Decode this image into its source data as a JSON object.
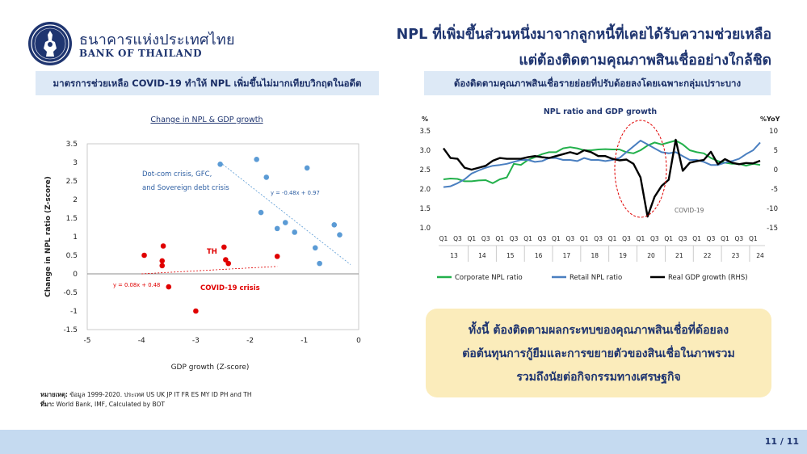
{
  "header": {
    "org_name_th": "ธนาคารแห่งประเทศไทย",
    "org_name_en": "BANK OF THAILAND",
    "headline_line1": "NPL ที่เพิ่มขึ้นส่วนหนึ่งมาจากลูกหนี้ที่เคยได้รับความช่วยเหลือ",
    "headline_line2": "แต่ต้องติดตามคุณภาพสินเชื่ออย่างใกล้ชิด"
  },
  "left_panel": {
    "subheading": "มาตรการช่วยเหลือ COVID-19 ทำให้ NPL เพิ่มขึ้นไม่มากเทียบวิกฤตในอดีต",
    "note_label": "หมายเหตุ:",
    "note_text": "ข้อมูล 1999-2020. ประเทศ US UK JP IT FR ES MY ID PH and TH",
    "source_label": "ที่มา:",
    "source_text": "World Bank, IMF, Calculated by BOT"
  },
  "right_panel": {
    "subheading": "ต้องติดตามคุณภาพสินเชื่อรายย่อยที่ปรับด้อยลงโดยเฉพาะกลุ่มเปราะบาง",
    "callout_line1": "ทั้งนี้ ต้องติดตามผลกระทบของคุณภาพสินเชื่อที่ด้อยลง",
    "callout_line2": "ต่อต้นทุนการกู้ยืมและการขยายตัวของสินเชื่อในภาพรวม",
    "callout_line3": "รวมถึงนัยต่อกิจกรรมทางเศรษฐกิจ"
  },
  "footer": {
    "page": "11 / 11"
  },
  "colors": {
    "navy": "#1f3570",
    "blue_points": "#5b9bd5",
    "red_points": "#e00000",
    "green": "#22b04b",
    "retail": "#4a7fc0",
    "black": "#000000"
  },
  "chart_data": [
    {
      "type": "scatter",
      "title": "Change in NPL & GDP growth",
      "xlabel": "GDP growth (Z-score)",
      "ylabel": "Change in NPL ratio (Z-score)",
      "xlim": [
        -5,
        0
      ],
      "ylim": [
        -1.5,
        3.5
      ],
      "x_ticks": [
        "-5",
        "-4",
        "-3",
        "-2",
        "-1",
        "0"
      ],
      "y_ticks": [
        "3.5",
        "3",
        "2.5",
        "2",
        "1.5",
        "1",
        "0.5",
        "0",
        "-0.5",
        "-1",
        "-1.5"
      ],
      "grid": false,
      "series": [
        {
          "name": "Dot-com crisis, GFC, and Sovereign debt crisis",
          "label_lines": [
            "Dot-com crisis, GFC,",
            "and Sovereign debt crisis"
          ],
          "trend_equation": "y = -0.48x + 0.97",
          "points": [
            [
              -2.55,
              2.95
            ],
            [
              -1.88,
              3.08
            ],
            [
              -1.7,
              2.6
            ],
            [
              -0.95,
              2.85
            ],
            [
              -1.8,
              1.65
            ],
            [
              -1.35,
              1.38
            ],
            [
              -1.18,
              1.12
            ],
            [
              -1.5,
              1.22
            ],
            [
              -0.45,
              1.32
            ],
            [
              -0.35,
              1.05
            ],
            [
              -0.8,
              0.7
            ],
            [
              -0.72,
              0.28
            ]
          ]
        },
        {
          "name": "COVID-19 crisis",
          "point_label": "TH",
          "trend_equation": "y = 0.08x + 0.48",
          "points": [
            [
              -3.95,
              0.5
            ],
            [
              -3.6,
              0.75
            ],
            [
              -3.62,
              0.35
            ],
            [
              -3.62,
              0.22
            ],
            [
              -3.5,
              -0.35
            ],
            [
              -3.0,
              -1.0
            ],
            [
              -2.48,
              0.72
            ],
            [
              -2.45,
              0.38
            ],
            [
              -2.4,
              0.28
            ],
            [
              -1.5,
              0.47
            ]
          ]
        }
      ]
    },
    {
      "type": "line",
      "title": "NPL ratio and GDP growth",
      "left_unit": "%",
      "right_unit": "%YoY",
      "ylim_left": [
        1.0,
        3.5
      ],
      "ylim_right": [
        -15,
        10
      ],
      "left_ticks": [
        "3.5",
        "3.0",
        "2.5",
        "2.0",
        "1.5",
        "1.0"
      ],
      "right_ticks": [
        "10",
        "5",
        "0",
        "-5",
        "-10",
        "-15"
      ],
      "quarter_labels": [
        "Q1",
        "Q3",
        "Q1",
        "Q3",
        "Q1",
        "Q3",
        "Q1",
        "Q3",
        "Q1",
        "Q3",
        "Q1",
        "Q3",
        "Q1",
        "Q3",
        "Q1",
        "Q3",
        "Q1",
        "Q3",
        "Q1",
        "Q3",
        "Q1",
        "Q3",
        "Q1"
      ],
      "year_labels": [
        "13",
        "14",
        "15",
        "16",
        "17",
        "18",
        "19",
        "20",
        "21",
        "22",
        "23",
        "24"
      ],
      "annotation": "COVID-19",
      "x": [
        "2013Q1",
        "2013Q2",
        "2013Q3",
        "2013Q4",
        "2014Q1",
        "2014Q2",
        "2014Q3",
        "2014Q4",
        "2015Q1",
        "2015Q2",
        "2015Q3",
        "2015Q4",
        "2016Q1",
        "2016Q2",
        "2016Q3",
        "2016Q4",
        "2017Q1",
        "2017Q2",
        "2017Q3",
        "2017Q4",
        "2018Q1",
        "2018Q2",
        "2018Q3",
        "2018Q4",
        "2019Q1",
        "2019Q2",
        "2019Q3",
        "2019Q4",
        "2020Q1",
        "2020Q2",
        "2020Q3",
        "2020Q4",
        "2021Q1",
        "2021Q2",
        "2021Q3",
        "2021Q4",
        "2022Q1",
        "2022Q2",
        "2022Q3",
        "2022Q4",
        "2023Q1",
        "2023Q2",
        "2023Q3",
        "2023Q4",
        "2024Q1",
        "2024Q2"
      ],
      "series": [
        {
          "name": "Corporate NPL ratio",
          "axis": "left",
          "values": [
            2.25,
            2.27,
            2.26,
            2.2,
            2.2,
            2.22,
            2.23,
            2.15,
            2.25,
            2.3,
            2.65,
            2.62,
            2.75,
            2.82,
            2.9,
            2.95,
            2.95,
            3.05,
            3.08,
            3.05,
            3.0,
            3.0,
            3.02,
            3.03,
            3.02,
            3.02,
            2.95,
            2.92,
            3.0,
            3.12,
            3.2,
            3.15,
            3.2,
            3.25,
            3.15,
            3.0,
            2.95,
            2.92,
            2.8,
            2.72,
            2.68,
            2.65,
            2.65,
            2.6,
            2.65,
            2.62
          ]
        },
        {
          "name": "Retail NPL ratio",
          "axis": "left",
          "values": [
            2.05,
            2.07,
            2.15,
            2.25,
            2.4,
            2.48,
            2.55,
            2.6,
            2.62,
            2.65,
            2.7,
            2.75,
            2.75,
            2.7,
            2.72,
            2.8,
            2.8,
            2.75,
            2.75,
            2.72,
            2.8,
            2.75,
            2.75,
            2.72,
            2.75,
            2.8,
            2.95,
            3.1,
            3.25,
            3.15,
            3.05,
            2.95,
            2.92,
            2.95,
            2.85,
            2.75,
            2.75,
            2.7,
            2.62,
            2.62,
            2.68,
            2.72,
            2.78,
            2.9,
            3.0,
            3.2
          ]
        },
        {
          "name": "Real GDP growth (RHS)",
          "axis": "right",
          "values": [
            5.5,
            3.0,
            2.8,
            0.5,
            0.0,
            0.5,
            1.0,
            2.3,
            3.0,
            2.8,
            2.8,
            2.8,
            3.2,
            3.5,
            3.2,
            3.0,
            3.5,
            4.0,
            4.5,
            4.0,
            5.0,
            4.5,
            3.5,
            3.5,
            2.8,
            2.4,
            2.6,
            1.5,
            -2.0,
            -12.1,
            -7.0,
            -4.2,
            -2.6,
            7.7,
            -0.3,
            1.8,
            2.2,
            2.5,
            4.6,
            1.4,
            2.7,
            1.8,
            1.4,
            1.7,
            1.6,
            2.3
          ]
        }
      ]
    }
  ]
}
